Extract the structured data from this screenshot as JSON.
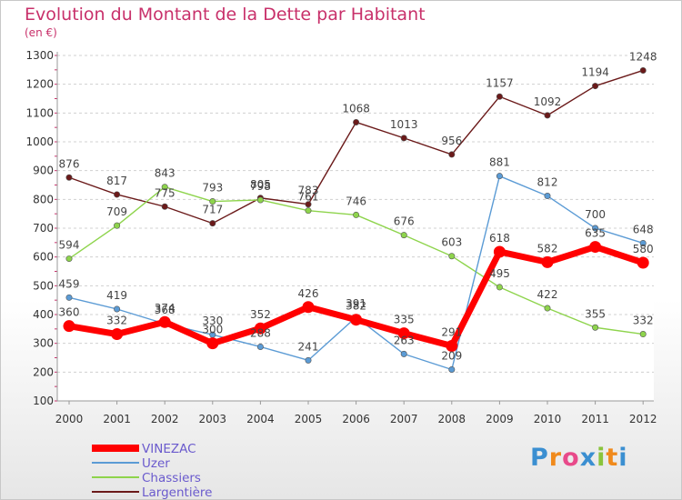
{
  "chart_data": {
    "type": "line",
    "title": "Evolution du Montant de la Dette par Habitant",
    "subtitle": "(en €)",
    "x": [
      "2000",
      "2001",
      "2002",
      "2003",
      "2004",
      "2005",
      "2006",
      "2007",
      "2008",
      "2009",
      "2010",
      "2011",
      "2012"
    ],
    "y_ticks": [
      "100",
      "200",
      "300",
      "400",
      "500",
      "600",
      "700",
      "800",
      "900",
      "1000",
      "1100",
      "1200",
      "1300"
    ],
    "ylim": [
      100,
      1300
    ],
    "grid": "dashed horizontal",
    "legend_position": "bottom-left",
    "series": [
      {
        "name": "VINEZAC",
        "color": "#ff0000",
        "values": [
          360,
          332,
          374,
          300,
          352,
          426,
          382,
          335,
          291,
          618,
          582,
          635,
          580
        ]
      },
      {
        "name": "Uzer",
        "color": "#5b9bd5",
        "values": [
          459,
          419,
          368,
          330,
          288,
          241,
          391,
          263,
          209,
          881,
          812,
          700,
          648
        ]
      },
      {
        "name": "Chassiers",
        "color": "#8ed44c",
        "values": [
          594,
          709,
          843,
          793,
          798,
          761,
          746,
          676,
          603,
          495,
          422,
          355,
          332
        ]
      },
      {
        "name": "Largentière",
        "color": "#6b1a1a",
        "values": [
          876,
          817,
          775,
          717,
          805,
          783,
          1068,
          1013,
          956,
          1157,
          1092,
          1194,
          1248
        ]
      }
    ]
  },
  "logo": {
    "text": "Proxiti",
    "letters": [
      "P",
      "r",
      "o",
      "x",
      "i",
      "t",
      "i"
    ],
    "colors": [
      "#3b8fd1",
      "#f08a1c",
      "#e84a8a",
      "#3b8fd1",
      "#8ac43c",
      "#f08a1c",
      "#3b8fd1"
    ]
  }
}
